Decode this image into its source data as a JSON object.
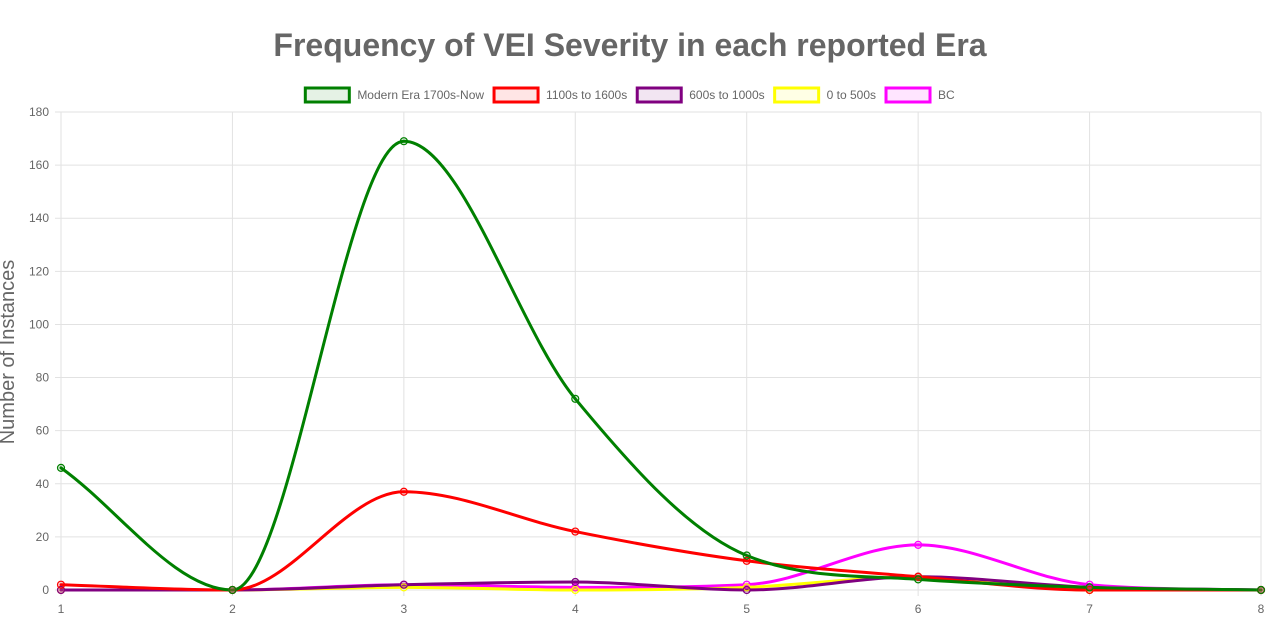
{
  "chart_data": {
    "type": "line",
    "title": "Frequency of VEI Severity in each reported Era",
    "xlabel": "",
    "ylabel": "Number of Instances",
    "categories": [
      "1",
      "2",
      "3",
      "4",
      "5",
      "6",
      "7",
      "8"
    ],
    "y_ticks": [
      0,
      20,
      40,
      60,
      80,
      100,
      120,
      140,
      160,
      180
    ],
    "ylim": [
      0,
      180
    ],
    "grid": true,
    "legend_position": "top",
    "series": [
      {
        "name": "Modern Era 1700s-Now",
        "color": "#008000",
        "values": [
          46,
          0,
          169,
          72,
          13,
          4,
          1,
          0
        ]
      },
      {
        "name": "1100s to 1600s",
        "color": "#ff0000",
        "values": [
          2,
          0,
          37,
          22,
          11,
          5,
          0,
          0
        ]
      },
      {
        "name": "600s to 1000s",
        "color": "#800080",
        "values": [
          0,
          0,
          2,
          3,
          0,
          5,
          1,
          0
        ]
      },
      {
        "name": "0 to 500s",
        "color": "#ffff00",
        "values": [
          0,
          0,
          1,
          0,
          1,
          5,
          0,
          0
        ]
      },
      {
        "name": "BC",
        "color": "#ff00ff",
        "values": [
          0,
          0,
          2,
          1,
          2,
          17,
          2,
          0
        ]
      }
    ]
  }
}
